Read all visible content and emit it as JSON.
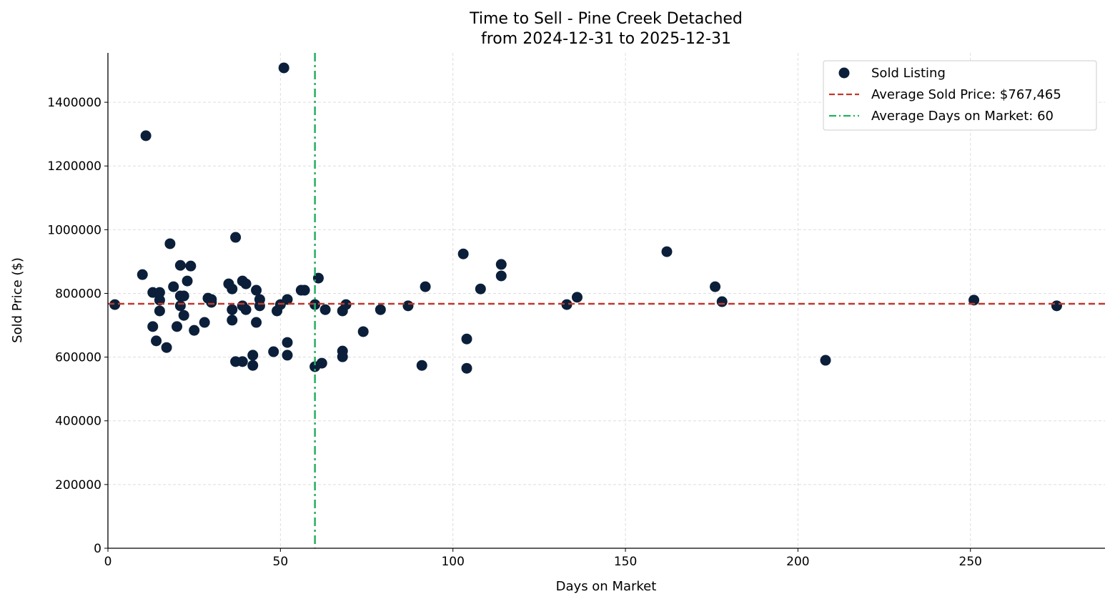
{
  "chart_data": {
    "type": "scatter",
    "title": "Time to Sell - Pine Creek Detached",
    "subtitle": "from 2024-12-31 to 2025-12-31",
    "xlabel": "Days on Market",
    "ylabel": "Sold Price ($)",
    "xlim": [
      0,
      289
    ],
    "ylim": [
      0,
      1555000
    ],
    "xticks": [
      0,
      50,
      100,
      150,
      200,
      250
    ],
    "yticks": [
      0,
      200000,
      400000,
      600000,
      800000,
      1000000,
      1200000,
      1400000
    ],
    "grid": true,
    "legend_position": "top-right",
    "colors": {
      "points": "#0b1f3a",
      "avg_price": "#c0392b",
      "avg_days": "#27ae60"
    },
    "legend": [
      "Sold Listing",
      "Average Sold Price: $767,465",
      "Average Days on Market: 60"
    ],
    "average_price": 767465,
    "average_days": 60,
    "series": [
      {
        "name": "Sold Listing",
        "points": [
          [
            2,
            765000
          ],
          [
            10,
            859000
          ],
          [
            11,
            1295000
          ],
          [
            13,
            803000
          ],
          [
            13,
            696000
          ],
          [
            14,
            651000
          ],
          [
            15,
            803000
          ],
          [
            15,
            779000
          ],
          [
            15,
            745000
          ],
          [
            17,
            630000
          ],
          [
            18,
            956000
          ],
          [
            19,
            821000
          ],
          [
            20,
            696000
          ],
          [
            21,
            888000
          ],
          [
            21,
            792000
          ],
          [
            21,
            761000
          ],
          [
            22,
            792000
          ],
          [
            22,
            731000
          ],
          [
            23,
            839000
          ],
          [
            24,
            886000
          ],
          [
            25,
            684000
          ],
          [
            28,
            709000
          ],
          [
            29,
            785000
          ],
          [
            30,
            781000
          ],
          [
            30,
            772000
          ],
          [
            35,
            830000
          ],
          [
            36,
            814000
          ],
          [
            36,
            749000
          ],
          [
            36,
            716000
          ],
          [
            37,
            976000
          ],
          [
            37,
            586000
          ],
          [
            39,
            839000
          ],
          [
            39,
            761000
          ],
          [
            39,
            586000
          ],
          [
            40,
            830000
          ],
          [
            40,
            749000
          ],
          [
            42,
            606000
          ],
          [
            42,
            574000
          ],
          [
            43,
            810000
          ],
          [
            43,
            709000
          ],
          [
            44,
            781000
          ],
          [
            44,
            761000
          ],
          [
            48,
            617000
          ],
          [
            49,
            745000
          ],
          [
            50,
            765000
          ],
          [
            51,
            1508000
          ],
          [
            52,
            781000
          ],
          [
            52,
            646000
          ],
          [
            52,
            606000
          ],
          [
            56,
            810000
          ],
          [
            57,
            810000
          ],
          [
            60,
            765000
          ],
          [
            60,
            570000
          ],
          [
            61,
            848000
          ],
          [
            62,
            581000
          ],
          [
            63,
            749000
          ],
          [
            68,
            745000
          ],
          [
            68,
            619000
          ],
          [
            68,
            601000
          ],
          [
            69,
            765000
          ],
          [
            74,
            680000
          ],
          [
            79,
            749000
          ],
          [
            87,
            761000
          ],
          [
            91,
            574000
          ],
          [
            92,
            821000
          ],
          [
            103,
            924000
          ],
          [
            104,
            657000
          ],
          [
            104,
            565000
          ],
          [
            108,
            814000
          ],
          [
            114,
            891000
          ],
          [
            114,
            855000
          ],
          [
            133,
            765000
          ],
          [
            136,
            788000
          ],
          [
            162,
            931000
          ],
          [
            176,
            821000
          ],
          [
            178,
            774000
          ],
          [
            208,
            590000
          ],
          [
            251,
            779000
          ],
          [
            275,
            761000
          ]
        ]
      }
    ]
  }
}
